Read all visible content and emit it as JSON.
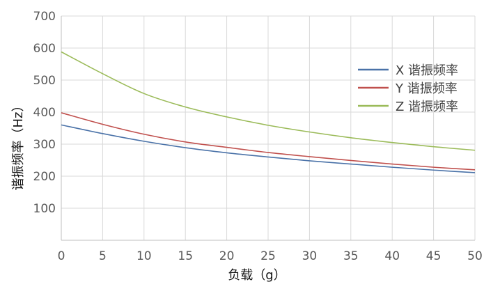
{
  "chart_data": {
    "type": "line",
    "title": "",
    "xlabel": "负载（g）",
    "ylabel": "谐振频率（Hz）",
    "xlim": [
      0,
      50
    ],
    "ylim": [
      0,
      700
    ],
    "x_ticks": [
      "0",
      "5",
      "10",
      "15",
      "20",
      "25",
      "30",
      "35",
      "40",
      "45",
      "50"
    ],
    "y_ticks": [
      "100",
      "200",
      "300",
      "400",
      "500",
      "600",
      "700"
    ],
    "grid": true,
    "legend_position": "right",
    "x": [
      0,
      5,
      10,
      15,
      20,
      25,
      30,
      35,
      40,
      45,
      50
    ],
    "series": [
      {
        "name": "X 谐振频率",
        "color": "#4a72a8",
        "values": [
          360,
          333,
          309,
          289,
          273,
          260,
          248,
          238,
          228,
          219,
          211
        ]
      },
      {
        "name": "Y 谐振频率",
        "color": "#c0504d",
        "values": [
          398,
          362,
          331,
          307,
          290,
          274,
          261,
          249,
          238,
          228,
          220
        ]
      },
      {
        "name": "Z 谐振频率",
        "color": "#9bbb59",
        "values": [
          588,
          520,
          458,
          416,
          385,
          359,
          338,
          320,
          305,
          292,
          281
        ]
      }
    ]
  }
}
